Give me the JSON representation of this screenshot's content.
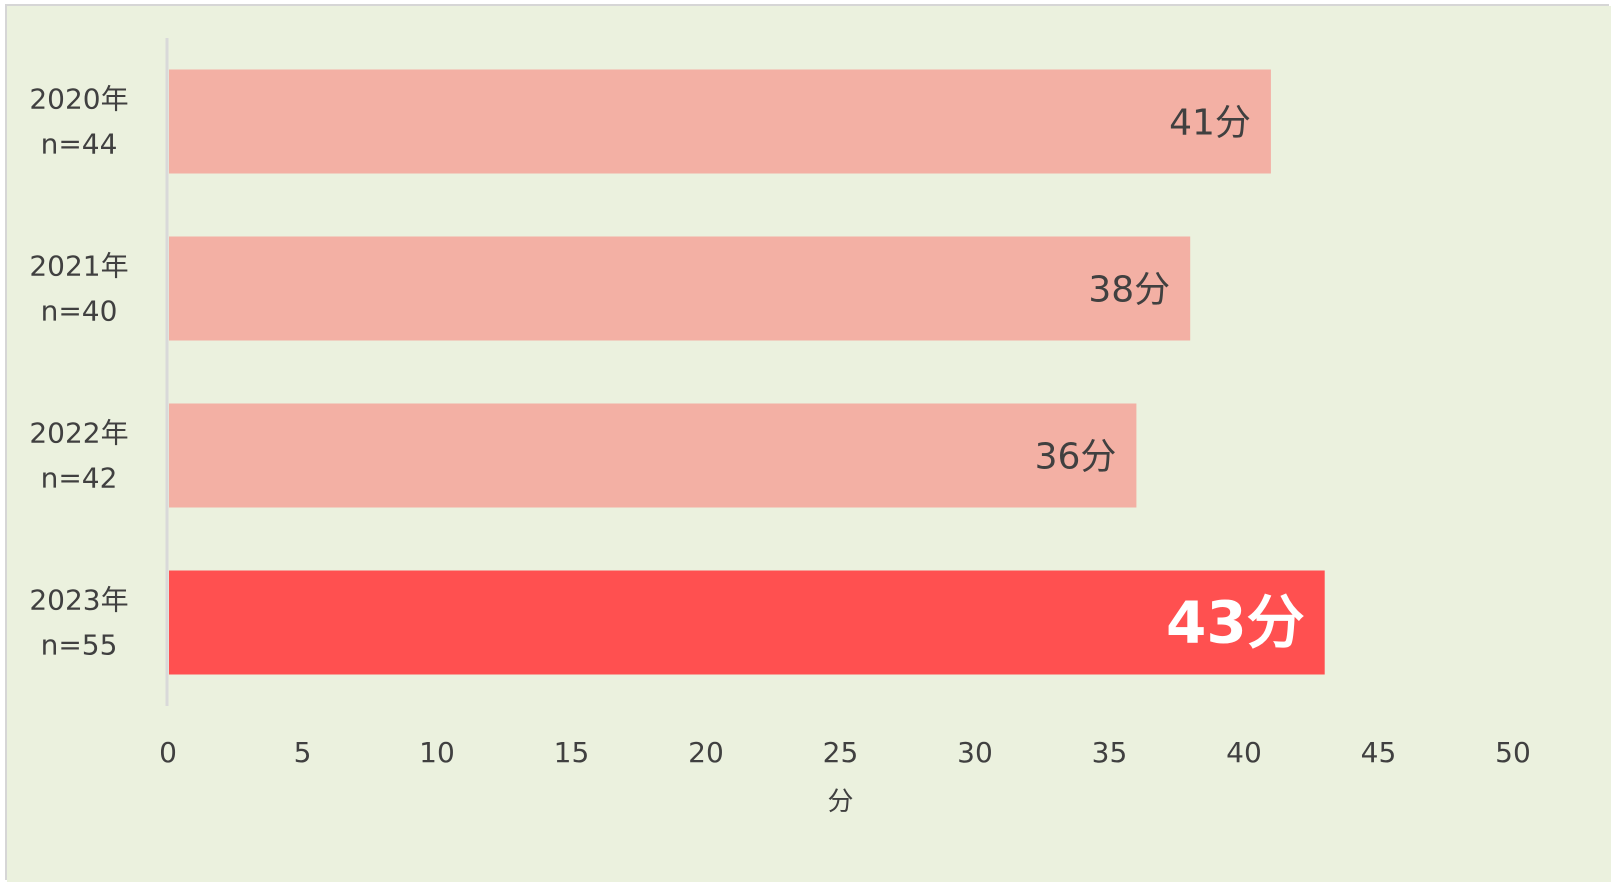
{
  "chart_data": {
    "type": "bar",
    "orientation": "horizontal",
    "title": "",
    "categories": [
      {
        "year": "2020年",
        "n": "n=44"
      },
      {
        "year": "2021年",
        "n": "n=40"
      },
      {
        "year": "2022年",
        "n": "n=42"
      },
      {
        "year": "2023年",
        "n": "n=55"
      }
    ],
    "values": [
      41,
      38,
      36,
      43
    ],
    "data_labels": [
      "41分",
      "38分",
      "36分",
      "43分"
    ],
    "highlight_index": 3,
    "xlabel": "分",
    "xlim": [
      0,
      50
    ],
    "xticks": [
      "0",
      "5",
      "10",
      "15",
      "20",
      "25",
      "30",
      "35",
      "40",
      "45",
      "50"
    ],
    "grid": false,
    "legend": "none",
    "colors": {
      "background": "#ebf1de",
      "bar": "#f3b0a4",
      "bar_highlight": "#ff5050",
      "axis": "#d9d9d9"
    }
  }
}
